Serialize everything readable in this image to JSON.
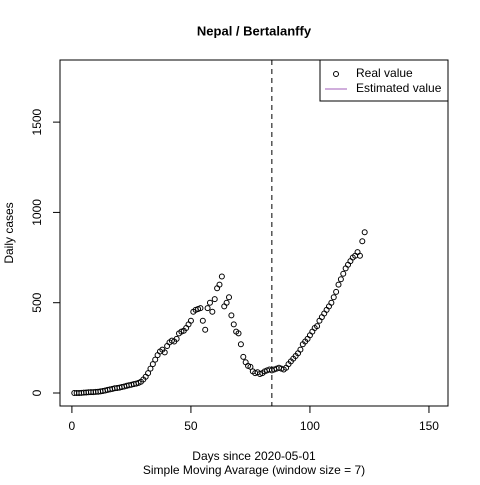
{
  "chart_data": {
    "type": "scatter",
    "title": "Nepal / Bertalanffy",
    "xlabel": "Days since 2020-05-01",
    "subtitle": "Simple Moving Avarage (window size = 7)",
    "ylabel": "Daily cases",
    "xlim": [
      -5,
      158
    ],
    "ylim": [
      -72,
      1844
    ],
    "xticks": [
      0,
      50,
      100,
      150
    ],
    "yticks": [
      0,
      500,
      1000,
      1500
    ],
    "vline": 84,
    "legend": {
      "position": "top-right",
      "entries": [
        {
          "name": "Real value",
          "kind": "point",
          "color": "#000000"
        },
        {
          "name": "Estimated value",
          "kind": "line",
          "color": "#a05cb8"
        }
      ]
    },
    "x": [
      1,
      2,
      3,
      4,
      5,
      6,
      7,
      8,
      9,
      10,
      11,
      12,
      13,
      14,
      15,
      16,
      17,
      18,
      19,
      20,
      21,
      22,
      23,
      24,
      25,
      26,
      27,
      28,
      29,
      30,
      31,
      32,
      33,
      34,
      35,
      36,
      37,
      38,
      39,
      40,
      41,
      42,
      43,
      44,
      45,
      46,
      47,
      48,
      49,
      50,
      51,
      52,
      53,
      54,
      55,
      56,
      57,
      58,
      59,
      60,
      61,
      62,
      63,
      64,
      65,
      66,
      67,
      68,
      69,
      70,
      71,
      72,
      73,
      74,
      75,
      76,
      77,
      78,
      79,
      80,
      81,
      82,
      83,
      84,
      85,
      86,
      87,
      88,
      89,
      90,
      91,
      92,
      93,
      94,
      95,
      96,
      97,
      98,
      99,
      100,
      101,
      102,
      103,
      104,
      105,
      106,
      107,
      108,
      109,
      110,
      111,
      112,
      113,
      114,
      115,
      116,
      117,
      118,
      119,
      120,
      121,
      122,
      123
    ],
    "values": [
      0,
      0,
      0,
      1,
      2,
      3,
      4,
      5,
      5,
      6,
      7,
      9,
      11,
      14,
      17,
      20,
      23,
      26,
      28,
      30,
      33,
      36,
      40,
      43,
      46,
      49,
      52,
      56,
      62,
      75,
      90,
      110,
      135,
      160,
      185,
      210,
      230,
      240,
      225,
      260,
      280,
      290,
      285,
      300,
      330,
      340,
      345,
      360,
      380,
      400,
      450,
      460,
      465,
      470,
      400,
      350,
      470,
      500,
      450,
      520,
      580,
      600,
      645,
      480,
      500,
      530,
      430,
      380,
      340,
      330,
      270,
      200,
      170,
      150,
      145,
      120,
      110,
      115,
      105,
      110,
      120,
      125,
      130,
      125,
      130,
      135,
      140,
      135,
      130,
      140,
      160,
      175,
      190,
      205,
      220,
      240,
      270,
      285,
      300,
      320,
      340,
      360,
      370,
      400,
      420,
      440,
      460,
      480,
      500,
      530,
      560,
      600,
      630,
      660,
      690,
      710,
      730,
      750,
      760,
      780,
      760,
      840,
      890
    ]
  }
}
